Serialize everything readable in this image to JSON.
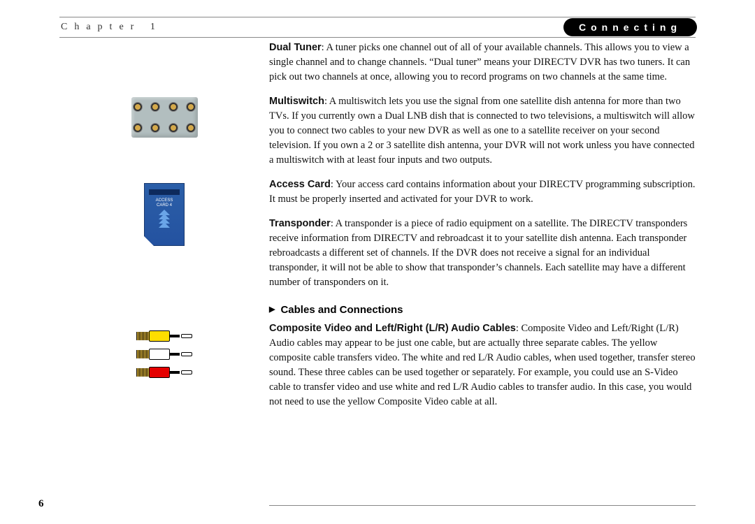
{
  "header": {
    "chapter": "Chapter 1",
    "pill": "Connecting"
  },
  "pageNumber": "6",
  "defs": {
    "dualTuner": {
      "term": "Dual Tuner",
      "text": ": A tuner picks one channel out of all of your available channels. This allows you to view a single channel and to change channels. “Dual tuner” means your DIRECTV DVR has two tuners. It can pick out two channels at once, allowing you to record programs on two channels at the same time."
    },
    "multiswitch": {
      "term": "Multiswitch",
      "text": ": A multiswitch lets you use the signal from one satellite dish antenna for more than two TVs. If you currently own a Dual LNB dish that is connected to two televisions, a multiswitch will allow you to connect two cables to your new DVR as well as one to a satellite receiver on your second television. If you own a 2 or 3 satellite dish antenna, your DVR will not work unless you have connected a multiswitch with at least four inputs and two outputs."
    },
    "accessCard": {
      "term": "Access Card",
      "text": ": Your access card contains information about your DIRECTV programming subscription. It must be properly inserted and activated for your DVR to work."
    },
    "transponder": {
      "term": "Transponder",
      "text": ": A transponder is a piece of radio equipment on a satellite. The DIRECTV transponders receive information from DIRECTV and rebroadcast it to your satellite dish antenna. Each transponder rebroadcasts a different set of channels. If the DVR does not receive a signal for an individual transponder, it will not be able to show that transponder’s channels. Each satellite may have a different number of transponders on it."
    }
  },
  "section": {
    "heading": "Cables and Connections",
    "composite": {
      "term": "Composite Video and Left/Right (L/R) Audio Cables",
      "text": ": Composite Video and Left/Right (L/R) Audio cables may appear to be just one cable, but are actually three separate cables. The yellow composite cable transfers video. The white and red L/R Audio cables, when used together, transfer stereo sound. These three cables can be used together or separately. For example, you could use an S-Video cable to transfer video and use white and red L/R Audio cables to transfer audio. In this case, you would not need to use the yellow Composite Video cable at all."
    }
  },
  "cardLabel": {
    "l1": "ACCESS",
    "l2": "CARD 4"
  },
  "colors": {
    "multiswitchBody": "#b2bebf",
    "cardBlue": "#2b5fa8",
    "rcaYellow": "#ffdd00",
    "rcaWhite": "#ffffff",
    "rcaRed": "#e40000"
  }
}
